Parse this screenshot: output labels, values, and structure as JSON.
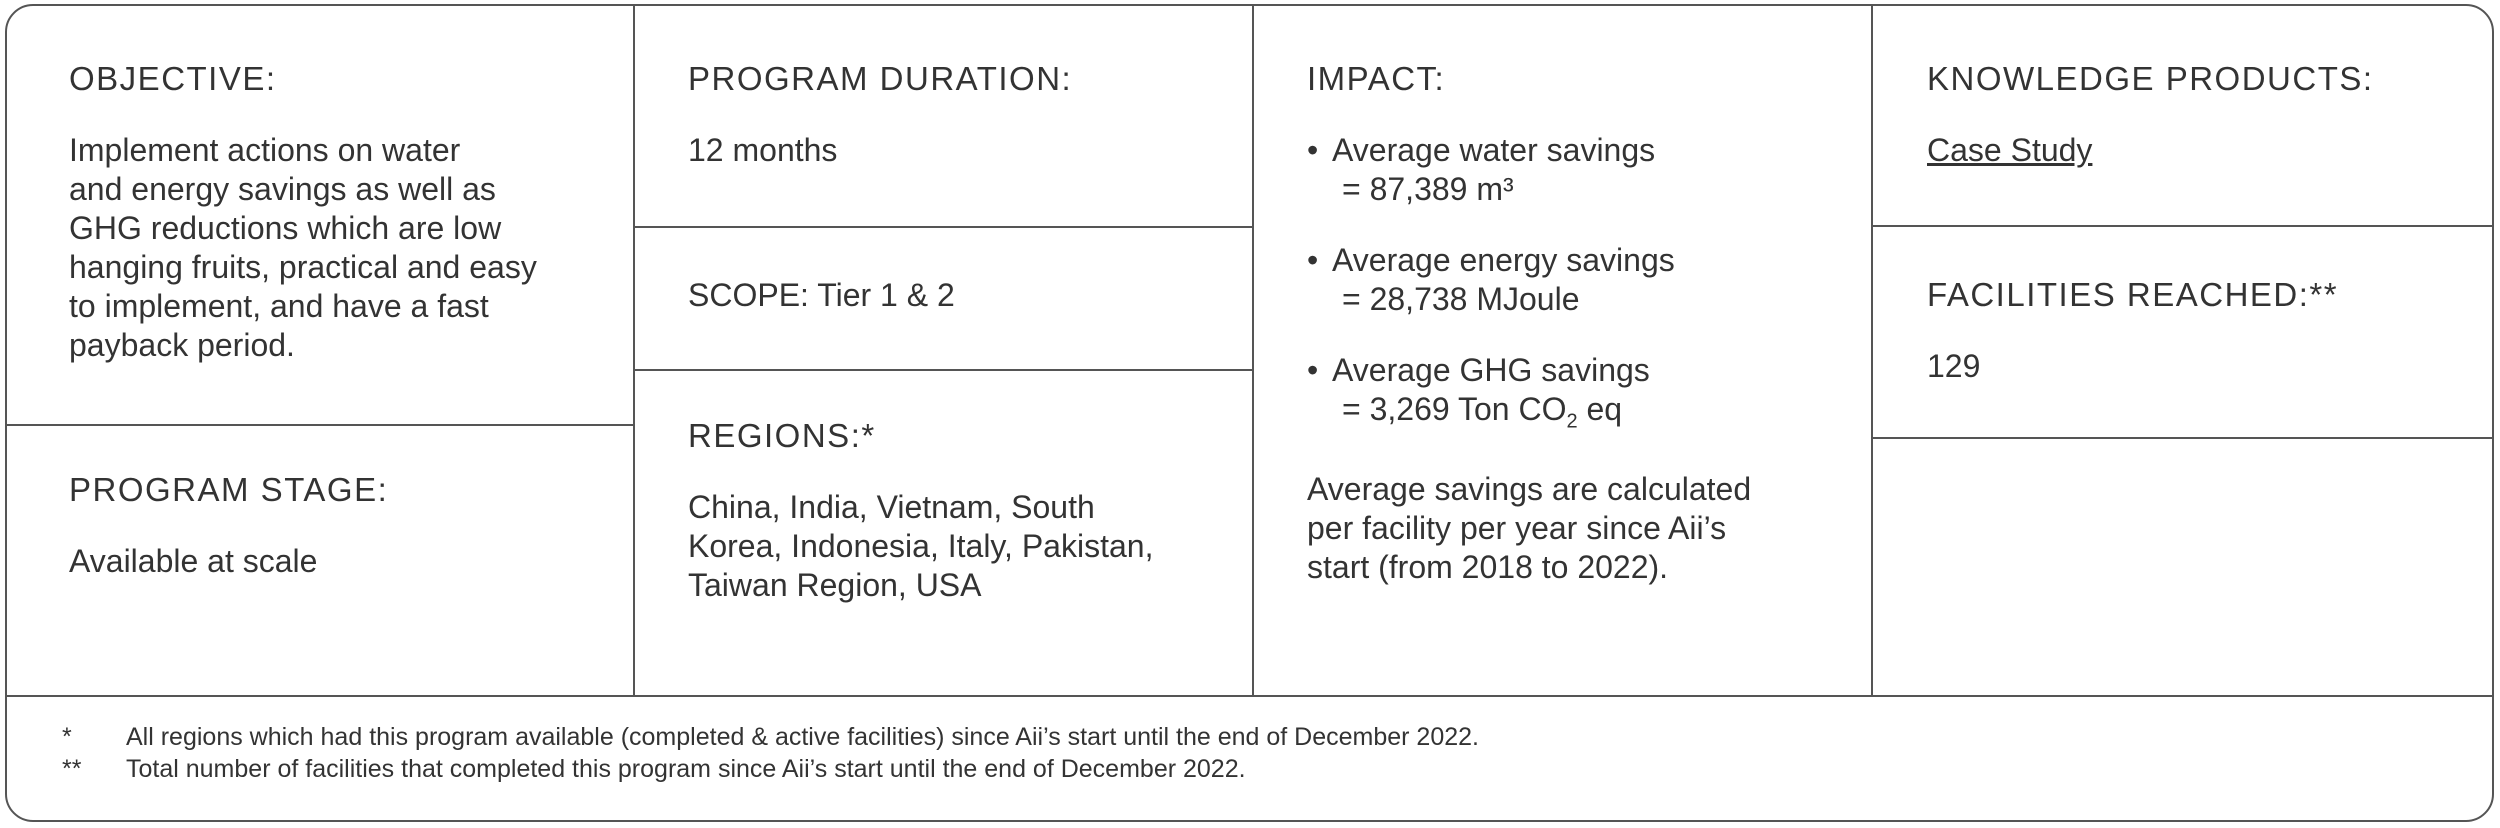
{
  "objective": {
    "label": "OBJECTIVE:",
    "lines": [
      "Implement actions on water",
      "and energy savings as well as",
      "GHG reductions which are low",
      "hanging fruits, practical and easy",
      "to implement, and have a fast",
      "payback period."
    ]
  },
  "program_stage": {
    "label": "PROGRAM STAGE:",
    "value": "Available at scale"
  },
  "program_duration": {
    "label": "PROGRAM DURATION:",
    "value": "12 months"
  },
  "scope": {
    "text": "SCOPE: Tier 1 & 2"
  },
  "regions": {
    "label": "REGIONS:*",
    "lines": [
      "China, India, Vietnam, South",
      "Korea, Indonesia, Italy, Pakistan,",
      "Taiwan Region, USA"
    ]
  },
  "impact": {
    "label": "IMPACT:",
    "items": [
      {
        "line1": "Average water savings",
        "line2": "= 87,389  m³"
      },
      {
        "line1": "Average energy savings",
        "line2": "=   28,738  MJoule"
      },
      {
        "line1": "Average GHG savings",
        "line2_prefix": "= 3,269  Ton CO",
        "line2_sub": "2",
        "line2_suffix": " eq"
      }
    ],
    "note_lines": [
      "Average savings are calculated",
      "per facility per year since Aii’s",
      "start (from 2018 to 2022)."
    ]
  },
  "knowledge_products": {
    "label": "KNOWLEDGE PRODUCTS:",
    "link": "Case Study "
  },
  "facilities_reached": {
    "label": "FACILITIES REACHED:**",
    "value": "129"
  },
  "footnotes": [
    {
      "marker": "*",
      "text": "All regions which had this program available (completed & active facilities) since Aii’s start until the end of December 2022."
    },
    {
      "marker": "**",
      "text": "Total number of facilities that completed this program since Aii’s start until the end of December 2022."
    }
  ]
}
